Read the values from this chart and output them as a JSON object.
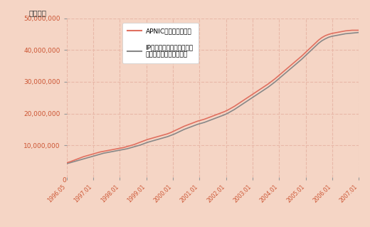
{
  "background_color": "#f5d5c5",
  "plot_bg_color": "#f5d5c5",
  "line1_color": "#e07060",
  "line2_color": "#888888",
  "legend1": "APNICからの割り振り",
  "legend2": "IPアドレス管理指定事業者\n（旧会員）への割り振り",
  "ylabel": "（件数）",
  "tick_color": "#cc5533",
  "grid_color": "#e8b8a8",
  "ytick_labels": [
    "10,000,000",
    "20,000,000",
    "30,000,000",
    "40,000,000",
    "50,000,000"
  ],
  "ytick_values": [
    10000000,
    20000000,
    30000000,
    40000000,
    50000000
  ],
  "ylim": [
    0,
    50000000
  ],
  "xtick_labels": [
    "1996.05",
    "1997.01",
    "1998.01",
    "1999.01",
    "2000.01",
    "2001.01",
    "2002.01",
    "2003.01",
    "2004.01",
    "2005.01",
    "2006.01",
    "2007.01"
  ],
  "line1_y": [
    4500000,
    4800000,
    5200000,
    5600000,
    6000000,
    6400000,
    6700000,
    7000000,
    7300000,
    7600000,
    7900000,
    8100000,
    8300000,
    8500000,
    8700000,
    8900000,
    9100000,
    9300000,
    9600000,
    9900000,
    10200000,
    10600000,
    11000000,
    11400000,
    11800000,
    12100000,
    12400000,
    12700000,
    13000000,
    13300000,
    13600000,
    14000000,
    14500000,
    15000000,
    15500000,
    16000000,
    16400000,
    16800000,
    17200000,
    17600000,
    17900000,
    18200000,
    18600000,
    19000000,
    19400000,
    19800000,
    20200000,
    20600000,
    21100000,
    21700000,
    22300000,
    23000000,
    23700000,
    24400000,
    25100000,
    25800000,
    26500000,
    27200000,
    27900000,
    28600000,
    29300000,
    30100000,
    30900000,
    31800000,
    32700000,
    33600000,
    34500000,
    35400000,
    36300000,
    37200000,
    38100000,
    39100000,
    40100000,
    41100000,
    42100000,
    43100000,
    43900000,
    44500000,
    44900000,
    45200000,
    45400000,
    45600000,
    45800000,
    46000000,
    46100000,
    46200000,
    46200000,
    46200000
  ],
  "line2_y": [
    4200000,
    4500000,
    4800000,
    5100000,
    5400000,
    5700000,
    6000000,
    6300000,
    6600000,
    6900000,
    7200000,
    7500000,
    7700000,
    7900000,
    8100000,
    8300000,
    8500000,
    8700000,
    8900000,
    9200000,
    9500000,
    9800000,
    10100000,
    10500000,
    10900000,
    11200000,
    11500000,
    11800000,
    12100000,
    12400000,
    12700000,
    13100000,
    13500000,
    14000000,
    14500000,
    15000000,
    15400000,
    15800000,
    16200000,
    16600000,
    16900000,
    17200000,
    17600000,
    18000000,
    18400000,
    18800000,
    19200000,
    19600000,
    20100000,
    20700000,
    21300000,
    22000000,
    22700000,
    23400000,
    24100000,
    24800000,
    25500000,
    26200000,
    26900000,
    27600000,
    28300000,
    29100000,
    29900000,
    30800000,
    31700000,
    32600000,
    33500000,
    34400000,
    35300000,
    36200000,
    37100000,
    38100000,
    39100000,
    40100000,
    41100000,
    42100000,
    42900000,
    43500000,
    44000000,
    44300000,
    44500000,
    44700000,
    44900000,
    45100000,
    45200000,
    45300000,
    45400000,
    45500000
  ]
}
